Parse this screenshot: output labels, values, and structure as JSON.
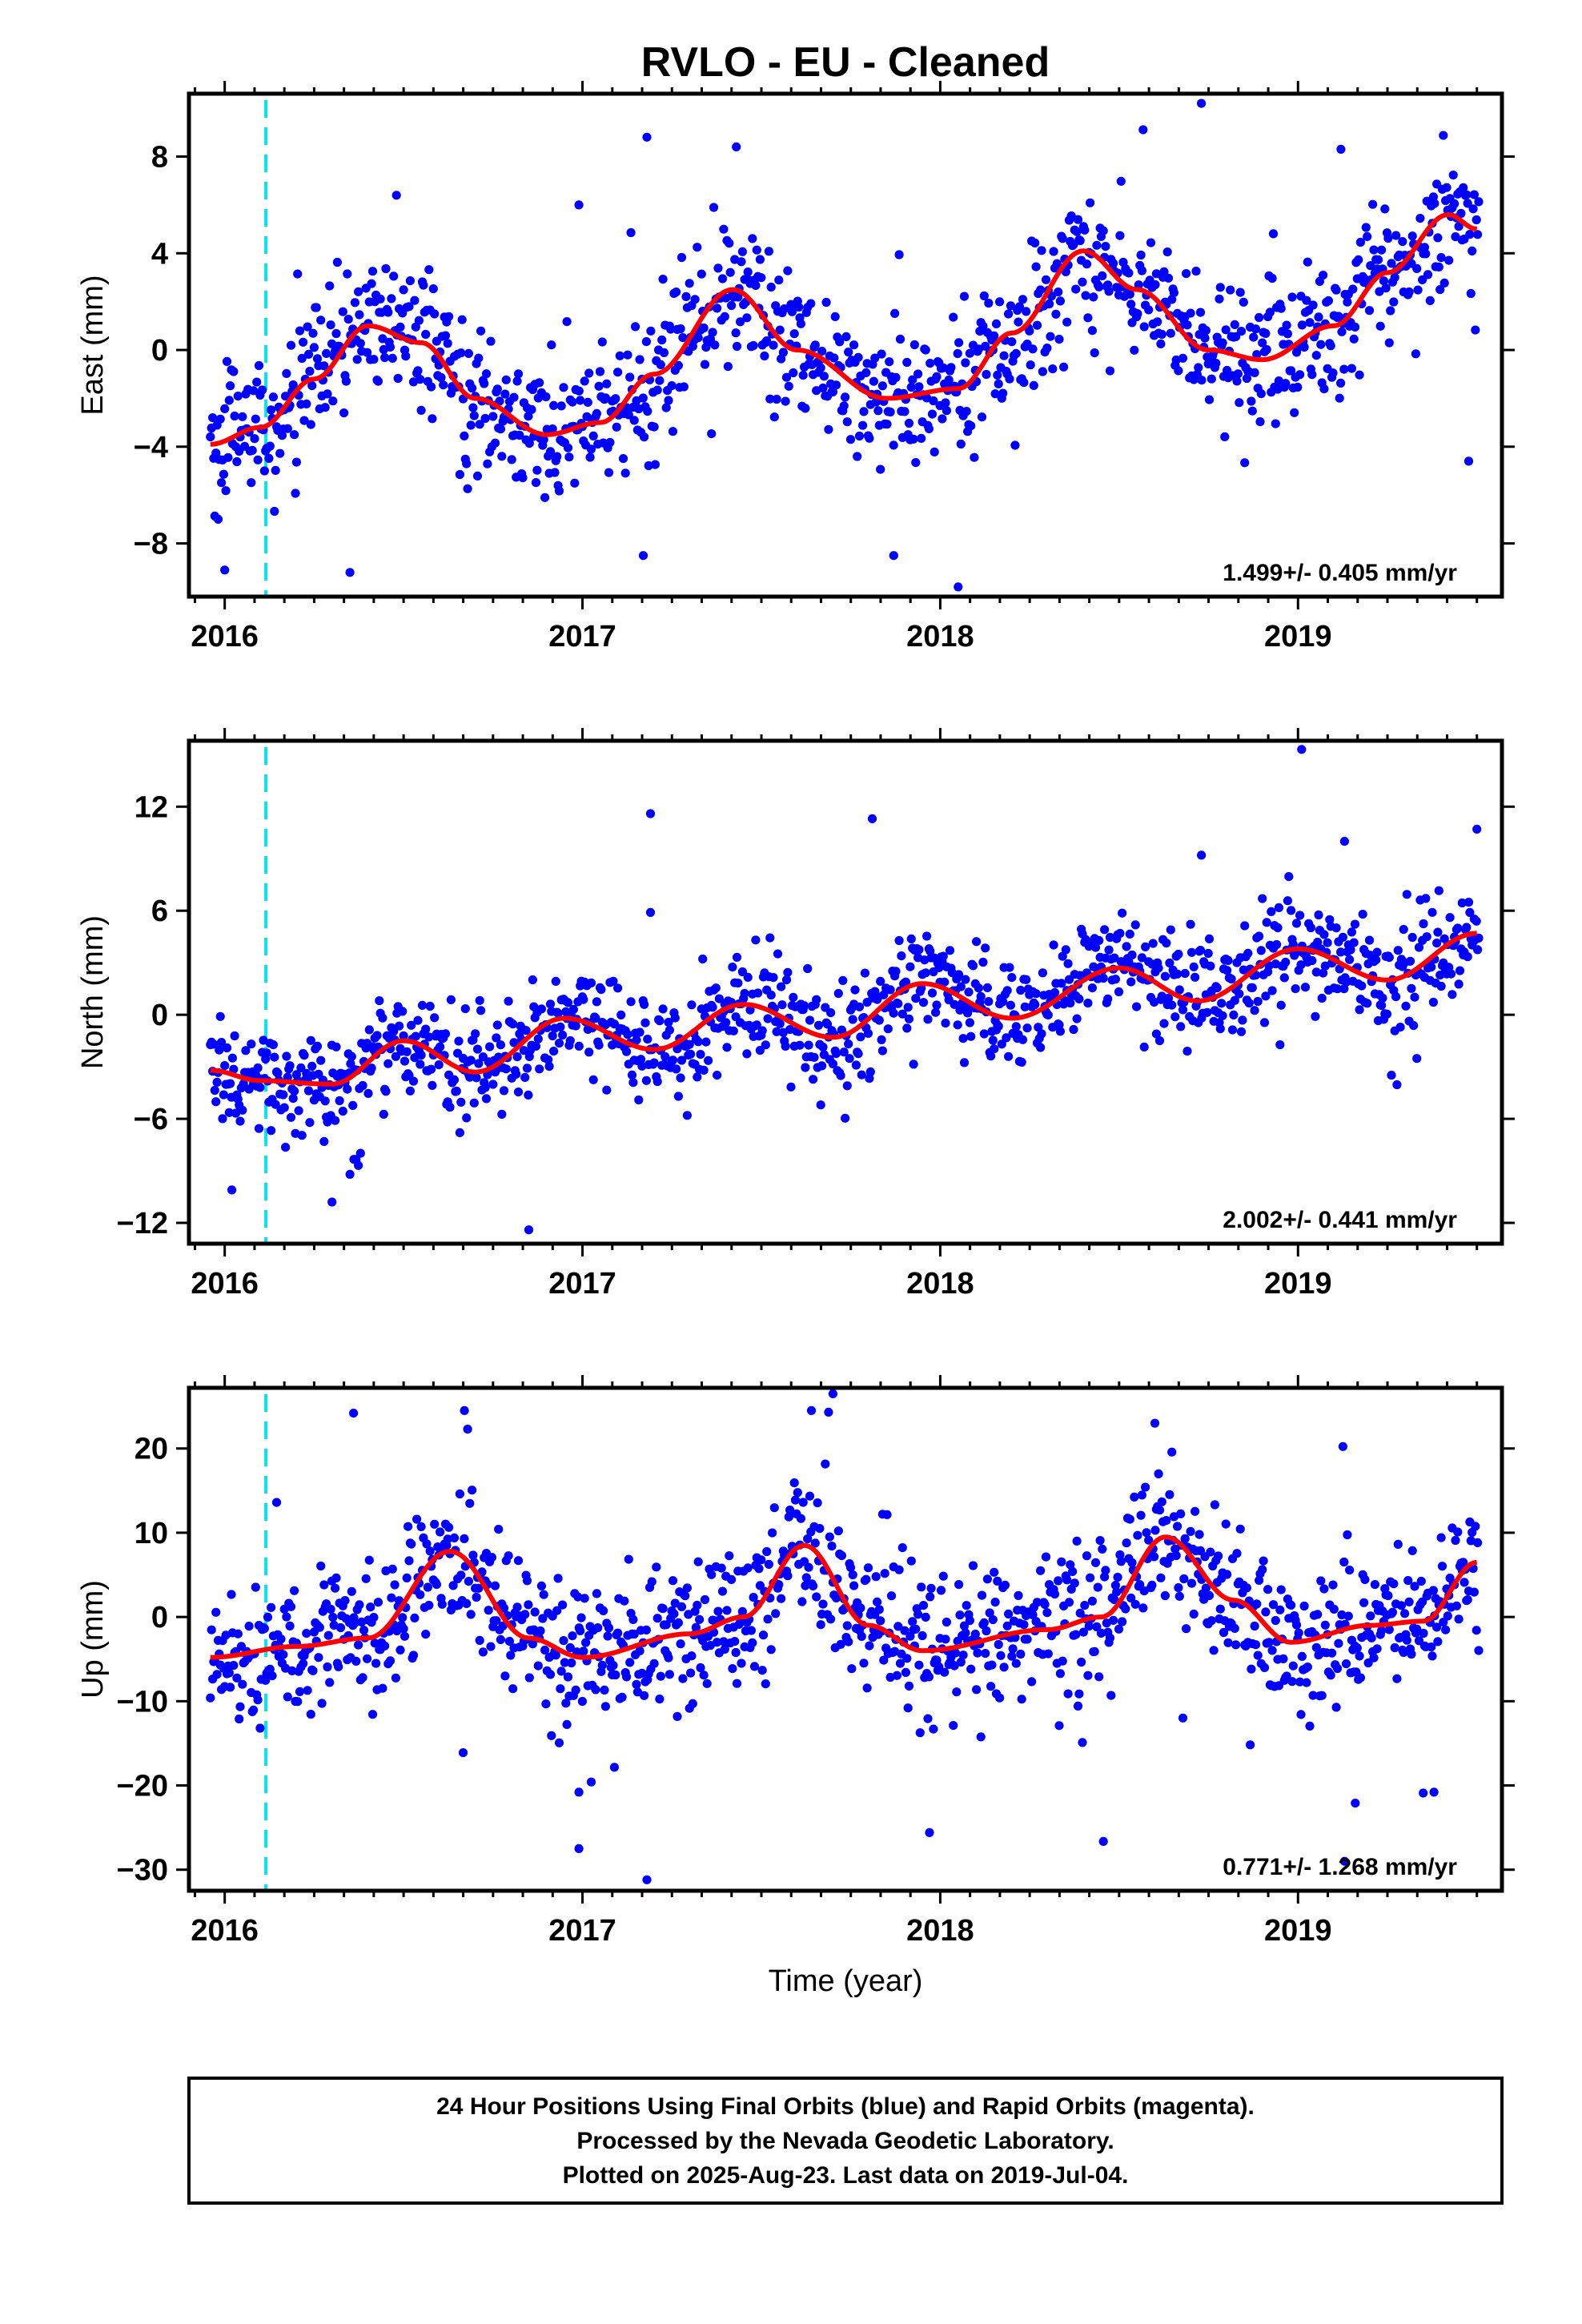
{
  "title": "RVLO  - EU - Cleaned",
  "xlabel": "Time (year)",
  "colors": {
    "data": "#0000ff",
    "model": "#ff0000",
    "event_line": "#00e5ee",
    "frame": "#000000"
  },
  "footer": {
    "lines": [
      "24 Hour Positions Using Final Orbits (blue) and Rapid Orbits (magenta).",
      "Processed by the Nevada Geodetic Laboratory.",
      "Plotted on 2025-Aug-23. Last data on 2019-Jul-04."
    ]
  },
  "chart_data": [
    {
      "type": "scatter",
      "component": "East",
      "ylabel": "East (mm)",
      "xlim": [
        2015.9,
        2019.57
      ],
      "ylim": [
        -10.2,
        10.6
      ],
      "xticks": [
        2016,
        2017,
        2018,
        2019
      ],
      "xtick_labels": [
        "2016",
        "2017",
        "2018",
        "2019"
      ],
      "yticks": [
        -8,
        -4,
        0,
        4,
        8
      ],
      "ytick_labels": [
        "−8",
        "−4",
        "0",
        "4",
        "8"
      ],
      "rate_label": "1.499+/- 0.405 mm/yr",
      "event_line_x": 2016.115,
      "series": [
        {
          "kind": "points",
          "color": "blue",
          "x_start": 2015.96,
          "x_end": 2019.505,
          "n": 1150,
          "trend_offset": -1.4,
          "trend_rate": 1.499,
          "annual_amp": 2.4,
          "annual_peak": 0.42,
          "noise_sd": 1.4,
          "outliers": [
            [
              2017.18,
              8.8
            ],
            [
              2018.73,
              10.2
            ],
            [
              2017.43,
              8.4
            ],
            [
              2019.12,
              8.3
            ],
            [
              2016.48,
              6.4
            ],
            [
              2016.0,
              -9.1
            ],
            [
              2016.35,
              -9.2
            ],
            [
              2017.87,
              -8.5
            ],
            [
              2018.05,
              -9.8
            ],
            [
              2017.17,
              -8.5
            ],
            [
              2016.99,
              6.0
            ]
          ]
        },
        {
          "kind": "model",
          "color": "red",
          "points": [
            [
              2015.96,
              -3.9
            ],
            [
              2016.1,
              -3.2
            ],
            [
              2016.25,
              -1.2
            ],
            [
              2016.4,
              1.0
            ],
            [
              2016.55,
              0.3
            ],
            [
              2016.7,
              -2.0
            ],
            [
              2016.9,
              -3.5
            ],
            [
              2017.05,
              -3.0
            ],
            [
              2017.2,
              -1.0
            ],
            [
              2017.42,
              2.5
            ],
            [
              2017.6,
              0.0
            ],
            [
              2017.85,
              -2.0
            ],
            [
              2018.05,
              -1.6
            ],
            [
              2018.2,
              0.7
            ],
            [
              2018.4,
              4.1
            ],
            [
              2018.55,
              2.5
            ],
            [
              2018.75,
              0.0
            ],
            [
              2018.9,
              -0.4
            ],
            [
              2019.1,
              1.0
            ],
            [
              2019.25,
              3.2
            ],
            [
              2019.42,
              5.6
            ],
            [
              2019.5,
              5.0
            ]
          ]
        }
      ]
    },
    {
      "type": "scatter",
      "component": "North",
      "ylabel": "North (mm)",
      "xlim": [
        2015.9,
        2019.57
      ],
      "ylim": [
        -13.2,
        15.8
      ],
      "xticks": [
        2016,
        2017,
        2018,
        2019
      ],
      "xtick_labels": [
        "2016",
        "2017",
        "2018",
        "2019"
      ],
      "yticks": [
        -12,
        -6,
        0,
        6,
        12
      ],
      "ytick_labels": [
        "−12",
        "−6",
        "0",
        "6",
        "12"
      ],
      "rate_label": "2.002+/- 0.441 mm/yr",
      "event_line_x": 2016.115,
      "series": [
        {
          "kind": "points",
          "color": "blue",
          "x_start": 2015.96,
          "x_end": 2019.505,
          "n": 1150,
          "trend_offset": -0.5,
          "trend_rate": 2.002,
          "annual_amp": 1.1,
          "annual_peak": 0.45,
          "noise_sd": 1.5,
          "outliers": [
            [
              2017.19,
              11.6
            ],
            [
              2017.81,
              11.3
            ],
            [
              2019.01,
              15.3
            ],
            [
              2019.13,
              10.0
            ],
            [
              2017.19,
              5.9
            ],
            [
              2018.73,
              9.2
            ],
            [
              2019.5,
              10.7
            ],
            [
              2016.3,
              -10.8
            ],
            [
              2016.35,
              -9.2
            ],
            [
              2016.85,
              -12.4
            ],
            [
              2016.02,
              -10.1
            ]
          ]
        },
        {
          "kind": "model",
          "color": "red",
          "points": [
            [
              2015.96,
              -3.2
            ],
            [
              2016.1,
              -3.8
            ],
            [
              2016.3,
              -4.0
            ],
            [
              2016.5,
              -1.5
            ],
            [
              2016.7,
              -3.3
            ],
            [
              2016.95,
              -0.2
            ],
            [
              2017.2,
              -2.0
            ],
            [
              2017.45,
              0.6
            ],
            [
              2017.7,
              -1.3
            ],
            [
              2017.95,
              1.8
            ],
            [
              2018.2,
              -0.2
            ],
            [
              2018.5,
              2.7
            ],
            [
              2018.72,
              0.8
            ],
            [
              2019.0,
              3.8
            ],
            [
              2019.25,
              2.0
            ],
            [
              2019.5,
              4.7
            ]
          ]
        }
      ]
    },
    {
      "type": "scatter",
      "component": "Up",
      "ylabel": "Up (mm)",
      "xlim": [
        2015.9,
        2019.57
      ],
      "ylim": [
        -32.5,
        27.2
      ],
      "xticks": [
        2016,
        2017,
        2018,
        2019
      ],
      "xtick_labels": [
        "2016",
        "2017",
        "2018",
        "2019"
      ],
      "yticks": [
        -30,
        -20,
        -10,
        0,
        10,
        20
      ],
      "ytick_labels": [
        "−30",
        "−20",
        "−10",
        "0",
        "10",
        "20"
      ],
      "rate_label": "0.771+/- 1.268 mm/yr",
      "event_line_x": 2016.115,
      "series": [
        {
          "kind": "points",
          "color": "blue",
          "x_start": 2015.96,
          "x_end": 2019.505,
          "n": 1150,
          "trend_offset": -1.0,
          "trend_rate": 0.771,
          "annual_amp": 5.5,
          "annual_peak": 0.6,
          "noise_sd": 4.2,
          "outliers": [
            [
              2016.36,
              24.2
            ],
            [
              2016.67,
              24.5
            ],
            [
              2017.64,
              24.5
            ],
            [
              2017.7,
              26.5
            ],
            [
              2018.6,
              23.0
            ],
            [
              2016.99,
              -20.8
            ],
            [
              2016.99,
              -27.5
            ],
            [
              2017.18,
              -31.2
            ],
            [
              2017.97,
              -25.6
            ],
            [
              2019.16,
              -22.1
            ],
            [
              2019.35,
              -20.9
            ],
            [
              2019.13,
              -29.0
            ],
            [
              2019.38,
              -20.8
            ]
          ]
        },
        {
          "kind": "model",
          "color": "red",
          "points": [
            [
              2015.96,
              -4.8
            ],
            [
              2016.2,
              -3.5
            ],
            [
              2016.4,
              -2.5
            ],
            [
              2016.63,
              7.8
            ],
            [
              2016.85,
              -2.5
            ],
            [
              2017.0,
              -4.8
            ],
            [
              2017.3,
              -2.0
            ],
            [
              2017.45,
              0.0
            ],
            [
              2017.62,
              8.5
            ],
            [
              2017.8,
              -1.0
            ],
            [
              2017.95,
              -4.0
            ],
            [
              2018.3,
              -1.5
            ],
            [
              2018.45,
              0.0
            ],
            [
              2018.63,
              9.5
            ],
            [
              2018.82,
              2.0
            ],
            [
              2018.98,
              -3.0
            ],
            [
              2019.2,
              -1.0
            ],
            [
              2019.35,
              -0.5
            ],
            [
              2019.5,
              6.5
            ]
          ]
        }
      ]
    }
  ]
}
